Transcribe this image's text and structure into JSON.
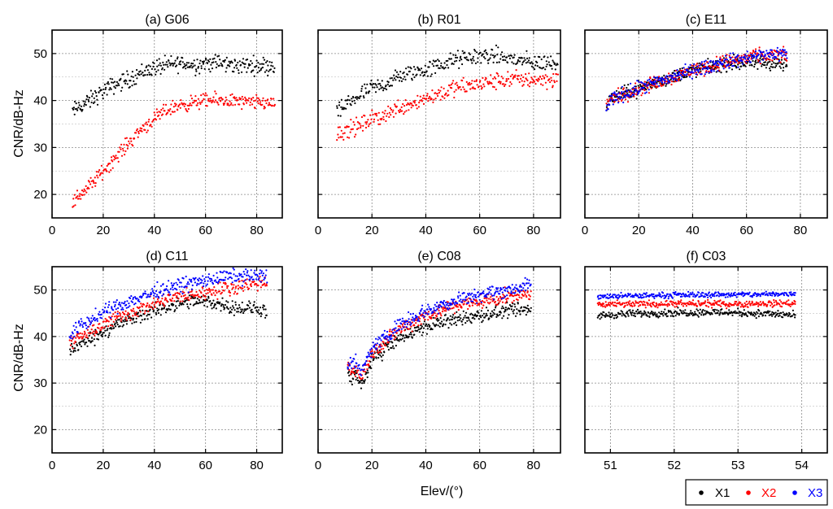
{
  "figure": {
    "shared_ylabel": "CNR/dB-Hz",
    "shared_xlabel": "Elev/(°)",
    "legend": [
      {
        "label": "X1",
        "color": "#000000"
      },
      {
        "label": "X2",
        "color": "#ff0000"
      },
      {
        "label": "X3",
        "color": "#0000ff"
      }
    ]
  },
  "chart_data": [
    {
      "type": "scatter",
      "title": "(a) G06",
      "xlim": [
        0,
        90
      ],
      "ylim": [
        15,
        55
      ],
      "xticks": [
        0,
        20,
        40,
        60,
        80
      ],
      "yticks": [
        20,
        30,
        40,
        50
      ],
      "grid": true,
      "series": [
        {
          "name": "X1",
          "color": "#000000",
          "x": [
            8,
            10,
            15,
            20,
            25,
            30,
            35,
            40,
            45,
            50,
            55,
            60,
            65,
            70,
            75,
            80,
            87
          ],
          "y": [
            37.5,
            38.5,
            40,
            42,
            43.5,
            44.5,
            46,
            47,
            47.5,
            48,
            47.5,
            48,
            48,
            47.5,
            47.5,
            47.5,
            47.5
          ],
          "spread": 1.8
        },
        {
          "name": "X2",
          "color": "#ff0000",
          "x": [
            8,
            10,
            15,
            20,
            25,
            30,
            35,
            40,
            45,
            50,
            55,
            60,
            65,
            70,
            75,
            80,
            87
          ],
          "y": [
            18,
            19.5,
            22,
            25,
            28,
            31,
            34,
            36,
            38,
            39,
            39.5,
            40,
            40,
            40,
            39.5,
            39.5,
            39.5
          ],
          "spread": 1.5
        }
      ]
    },
    {
      "type": "scatter",
      "title": "(b) R01",
      "xlim": [
        0,
        90
      ],
      "ylim": [
        15,
        55
      ],
      "xticks": [
        0,
        20,
        40,
        60,
        80
      ],
      "yticks": [
        20,
        30,
        40,
        50
      ],
      "grid": true,
      "series": [
        {
          "name": "X1",
          "color": "#000000",
          "x": [
            7,
            10,
            15,
            20,
            25,
            30,
            35,
            40,
            45,
            50,
            55,
            60,
            65,
            70,
            75,
            80,
            89
          ],
          "y": [
            37,
            39,
            41,
            42.5,
            43.5,
            45,
            46,
            46.5,
            47.5,
            48.5,
            49,
            49.5,
            49.5,
            49,
            48.5,
            48,
            48
          ],
          "spread": 1.8
        },
        {
          "name": "X2",
          "color": "#ff0000",
          "x": [
            7,
            10,
            15,
            20,
            25,
            30,
            35,
            40,
            45,
            50,
            55,
            60,
            65,
            70,
            75,
            80,
            89
          ],
          "y": [
            33,
            33.5,
            34.5,
            36,
            37,
            38.5,
            39.5,
            40.5,
            41.5,
            42.5,
            43,
            43.5,
            44,
            44.5,
            44.5,
            44.5,
            44.5
          ],
          "spread": 1.8
        }
      ]
    },
    {
      "type": "scatter",
      "title": "(c) E11",
      "xlim": [
        0,
        90
      ],
      "ylim": [
        15,
        55
      ],
      "xticks": [
        0,
        20,
        40,
        60,
        80
      ],
      "yticks": [
        20,
        30,
        40,
        50
      ],
      "grid": true,
      "series": [
        {
          "name": "X1",
          "color": "#000000",
          "x": [
            8,
            10,
            15,
            20,
            25,
            30,
            35,
            40,
            45,
            50,
            55,
            60,
            65,
            70,
            75
          ],
          "y": [
            39,
            40.5,
            41.5,
            42.5,
            43.5,
            44.5,
            45.5,
            46.5,
            47,
            47.5,
            48,
            48,
            48,
            48,
            47.5
          ],
          "spread": 1.5
        },
        {
          "name": "X2",
          "color": "#ff0000",
          "x": [
            8,
            10,
            15,
            20,
            25,
            30,
            35,
            40,
            45,
            50,
            55,
            60,
            65,
            70,
            75
          ],
          "y": [
            39,
            40.5,
            41.5,
            42.5,
            43.5,
            44.5,
            45.5,
            46.5,
            47,
            48,
            48.5,
            49,
            49.5,
            49.5,
            49.5
          ],
          "spread": 1.5
        },
        {
          "name": "X3",
          "color": "#0000ff",
          "x": [
            8,
            10,
            15,
            20,
            25,
            30,
            35,
            40,
            45,
            50,
            55,
            60,
            65,
            70,
            75
          ],
          "y": [
            38,
            40.5,
            41.5,
            42.5,
            43.5,
            44.5,
            45.5,
            46.5,
            47,
            48,
            48.5,
            49,
            49.5,
            50,
            50
          ],
          "spread": 1.5
        }
      ]
    },
    {
      "type": "scatter",
      "title": "(d) C11",
      "xlim": [
        0,
        90
      ],
      "ylim": [
        15,
        55
      ],
      "xticks": [
        0,
        20,
        40,
        60,
        80
      ],
      "yticks": [
        20,
        30,
        40,
        50
      ],
      "grid": true,
      "series": [
        {
          "name": "X1",
          "color": "#000000",
          "x": [
            7,
            10,
            15,
            20,
            25,
            30,
            35,
            40,
            45,
            50,
            55,
            60,
            65,
            70,
            75,
            80,
            84
          ],
          "y": [
            37,
            38,
            39.5,
            41,
            42.5,
            43.5,
            44.5,
            45.5,
            46.5,
            47,
            47.5,
            47.5,
            47,
            46.5,
            46,
            46,
            45.5
          ],
          "spread": 1.5
        },
        {
          "name": "X2",
          "color": "#ff0000",
          "x": [
            7,
            10,
            15,
            20,
            25,
            30,
            35,
            40,
            45,
            50,
            55,
            60,
            65,
            70,
            75,
            80,
            84
          ],
          "y": [
            38,
            39.5,
            41,
            42.5,
            44,
            45,
            46,
            47,
            48,
            48.5,
            49,
            49.5,
            50,
            50.5,
            51,
            51.5,
            51.5
          ],
          "spread": 1.5
        },
        {
          "name": "X3",
          "color": "#0000ff",
          "x": [
            7,
            10,
            15,
            20,
            25,
            30,
            35,
            40,
            45,
            50,
            55,
            60,
            65,
            70,
            75,
            80,
            84
          ],
          "y": [
            40,
            42,
            43.5,
            45,
            46.5,
            47.5,
            48.5,
            49.5,
            50.5,
            51,
            51.5,
            52,
            52.5,
            53,
            53,
            53,
            53
          ],
          "spread": 1.5
        }
      ]
    },
    {
      "type": "scatter",
      "title": "(e) C08",
      "xlim": [
        0,
        90
      ],
      "ylim": [
        15,
        55
      ],
      "xticks": [
        0,
        20,
        40,
        60,
        80
      ],
      "yticks": [
        20,
        30,
        40,
        50
      ],
      "grid": true,
      "series": [
        {
          "name": "X1",
          "color": "#000000",
          "x": [
            11,
            12,
            14,
            16,
            20,
            25,
            30,
            35,
            40,
            45,
            50,
            55,
            60,
            65,
            70,
            75,
            79
          ],
          "y": [
            33,
            31,
            32,
            29,
            35,
            37.5,
            39.5,
            41,
            42,
            43,
            43.5,
            44,
            44.5,
            45,
            45.5,
            45.5,
            46
          ],
          "spread": 1.5
        },
        {
          "name": "X2",
          "color": "#ff0000",
          "x": [
            11,
            12,
            14,
            16,
            20,
            25,
            30,
            35,
            40,
            45,
            50,
            55,
            60,
            65,
            70,
            75,
            79
          ],
          "y": [
            34,
            33,
            33,
            31,
            36.5,
            39,
            41.5,
            43,
            44.5,
            45.5,
            46.5,
            47,
            47.5,
            48,
            48.5,
            49,
            49
          ],
          "spread": 1.5
        },
        {
          "name": "X3",
          "color": "#0000ff",
          "x": [
            11,
            12,
            14,
            16,
            20,
            25,
            30,
            35,
            40,
            45,
            50,
            55,
            60,
            65,
            70,
            75,
            79
          ],
          "y": [
            34,
            35,
            34,
            32,
            37.5,
            40,
            42.5,
            44,
            45.5,
            46.5,
            47.5,
            48.5,
            49,
            49.5,
            50,
            50.5,
            51
          ],
          "spread": 1.5
        }
      ]
    },
    {
      "type": "scatter",
      "title": "(f) C03",
      "xlim": [
        50.6,
        54.4
      ],
      "ylim": [
        15,
        55
      ],
      "xticks": [
        51,
        52,
        53,
        54
      ],
      "yticks": [
        20,
        30,
        40,
        50
      ],
      "grid": true,
      "series": [
        {
          "name": "X1",
          "color": "#000000",
          "x": [
            50.8,
            51.2,
            51.6,
            52.0,
            52.4,
            52.8,
            53.2,
            53.6,
            53.9
          ],
          "y": [
            44.5,
            44.8,
            45.0,
            45.1,
            45.2,
            45.2,
            45.0,
            44.8,
            44.5
          ],
          "spread": 0.8
        },
        {
          "name": "X2",
          "color": "#ff0000",
          "x": [
            50.8,
            51.2,
            51.6,
            52.0,
            52.4,
            52.8,
            53.2,
            53.6,
            53.9
          ],
          "y": [
            46.8,
            46.9,
            47.0,
            47.0,
            47.0,
            47.0,
            47.0,
            47.1,
            47.2
          ],
          "spread": 0.7
        },
        {
          "name": "X3",
          "color": "#0000ff",
          "x": [
            50.8,
            51.2,
            51.6,
            52.0,
            52.4,
            52.8,
            53.2,
            53.6,
            53.9
          ],
          "y": [
            48.5,
            48.7,
            48.8,
            48.9,
            49.0,
            49.0,
            49.0,
            49.1,
            49.2
          ],
          "spread": 0.6
        }
      ]
    }
  ]
}
